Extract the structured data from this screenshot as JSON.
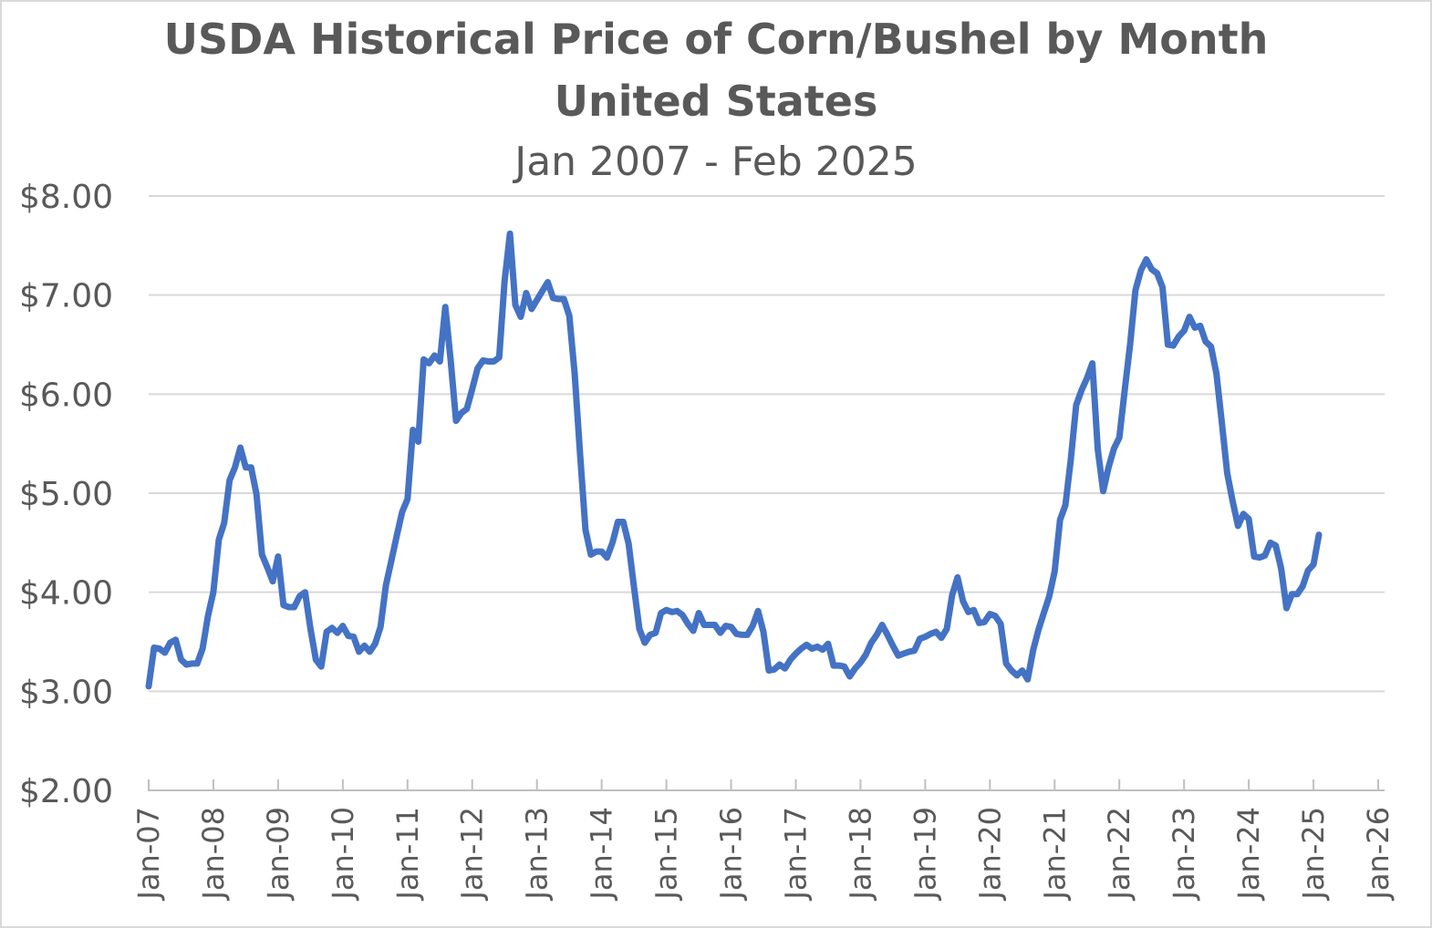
{
  "colors": {
    "line": "#4472c4",
    "text": "#595959",
    "grid": "#d9d9d9"
  },
  "chart_data": {
    "type": "line",
    "title": "USDA Historical Price of Corn/Bushel by Month",
    "subtitle": "United States",
    "date_range": "Jan 2007 - Feb 2025",
    "xlabel": "",
    "ylabel": "",
    "ylim": [
      2,
      8
    ],
    "yticks": [
      2,
      3,
      4,
      5,
      6,
      7,
      8
    ],
    "ytick_labels": [
      "$2.00",
      "$3.00",
      "$4.00",
      "$5.00",
      "$6.00",
      "$7.00",
      "$8.00"
    ],
    "x_tick_labels": [
      "Jan-07",
      "Jan-08",
      "Jan-09",
      "Jan-10",
      "Jan-11",
      "Jan-12",
      "Jan-13",
      "Jan-14",
      "Jan-15",
      "Jan-16",
      "Jan-17",
      "Jan-18",
      "Jan-19",
      "Jan-20",
      "Jan-21",
      "Jan-22",
      "Jan-23",
      "Jan-24",
      "Jan-25",
      "Jan-26"
    ],
    "grid": true,
    "legend": "none",
    "series": [
      {
        "start": "Jan-07",
        "frequency": "monthly",
        "values": [
          3.05,
          3.44,
          3.43,
          3.39,
          3.49,
          3.52,
          3.32,
          3.27,
          3.28,
          3.28,
          3.43,
          3.76,
          4.0,
          4.53,
          4.7,
          5.13,
          5.26,
          5.46,
          5.26,
          5.26,
          4.99,
          4.38,
          4.25,
          4.11,
          4.36,
          3.87,
          3.85,
          3.85,
          3.96,
          4.0,
          3.63,
          3.32,
          3.25,
          3.6,
          3.64,
          3.59,
          3.66,
          3.56,
          3.55,
          3.4,
          3.46,
          3.4,
          3.48,
          3.65,
          4.07,
          4.32,
          4.57,
          4.81,
          4.94,
          5.64,
          5.52,
          6.35,
          6.31,
          6.39,
          6.33,
          6.88,
          6.34,
          5.73,
          5.81,
          5.85,
          6.05,
          6.26,
          6.34,
          6.33,
          6.33,
          6.37,
          7.14,
          7.62,
          6.9,
          6.78,
          7.02,
          6.86,
          6.95,
          7.04,
          7.13,
          6.97,
          6.96,
          6.96,
          6.79,
          6.2,
          5.39,
          4.63,
          4.38,
          4.41,
          4.41,
          4.35,
          4.5,
          4.71,
          4.71,
          4.49,
          4.05,
          3.63,
          3.49,
          3.57,
          3.59,
          3.79,
          3.82,
          3.8,
          3.81,
          3.77,
          3.68,
          3.61,
          3.79,
          3.67,
          3.67,
          3.67,
          3.59,
          3.66,
          3.65,
          3.58,
          3.57,
          3.57,
          3.66,
          3.81,
          3.6,
          3.21,
          3.22,
          3.27,
          3.23,
          3.32,
          3.38,
          3.43,
          3.47,
          3.43,
          3.45,
          3.42,
          3.48,
          3.26,
          3.26,
          3.25,
          3.15,
          3.23,
          3.29,
          3.37,
          3.49,
          3.57,
          3.67,
          3.57,
          3.46,
          3.36,
          3.38,
          3.4,
          3.41,
          3.53,
          3.55,
          3.58,
          3.6,
          3.54,
          3.63,
          3.97,
          4.15,
          3.91,
          3.8,
          3.82,
          3.69,
          3.7,
          3.78,
          3.76,
          3.68,
          3.28,
          3.21,
          3.16,
          3.21,
          3.12,
          3.41,
          3.62,
          3.79,
          3.96,
          4.21,
          4.73,
          4.88,
          5.34,
          5.89,
          6.04,
          6.16,
          6.31,
          5.44,
          5.02,
          5.26,
          5.45,
          5.56,
          6.04,
          6.5,
          7.05,
          7.25,
          7.36,
          7.26,
          7.22,
          7.08,
          6.5,
          6.49,
          6.58,
          6.64,
          6.78,
          6.67,
          6.69,
          6.53,
          6.48,
          6.21,
          5.72,
          5.2,
          4.92,
          4.67,
          4.79,
          4.74,
          4.36,
          4.35,
          4.37,
          4.5,
          4.47,
          4.24,
          3.84,
          3.98,
          3.98,
          4.06,
          4.22,
          4.28,
          4.58
        ]
      }
    ]
  }
}
